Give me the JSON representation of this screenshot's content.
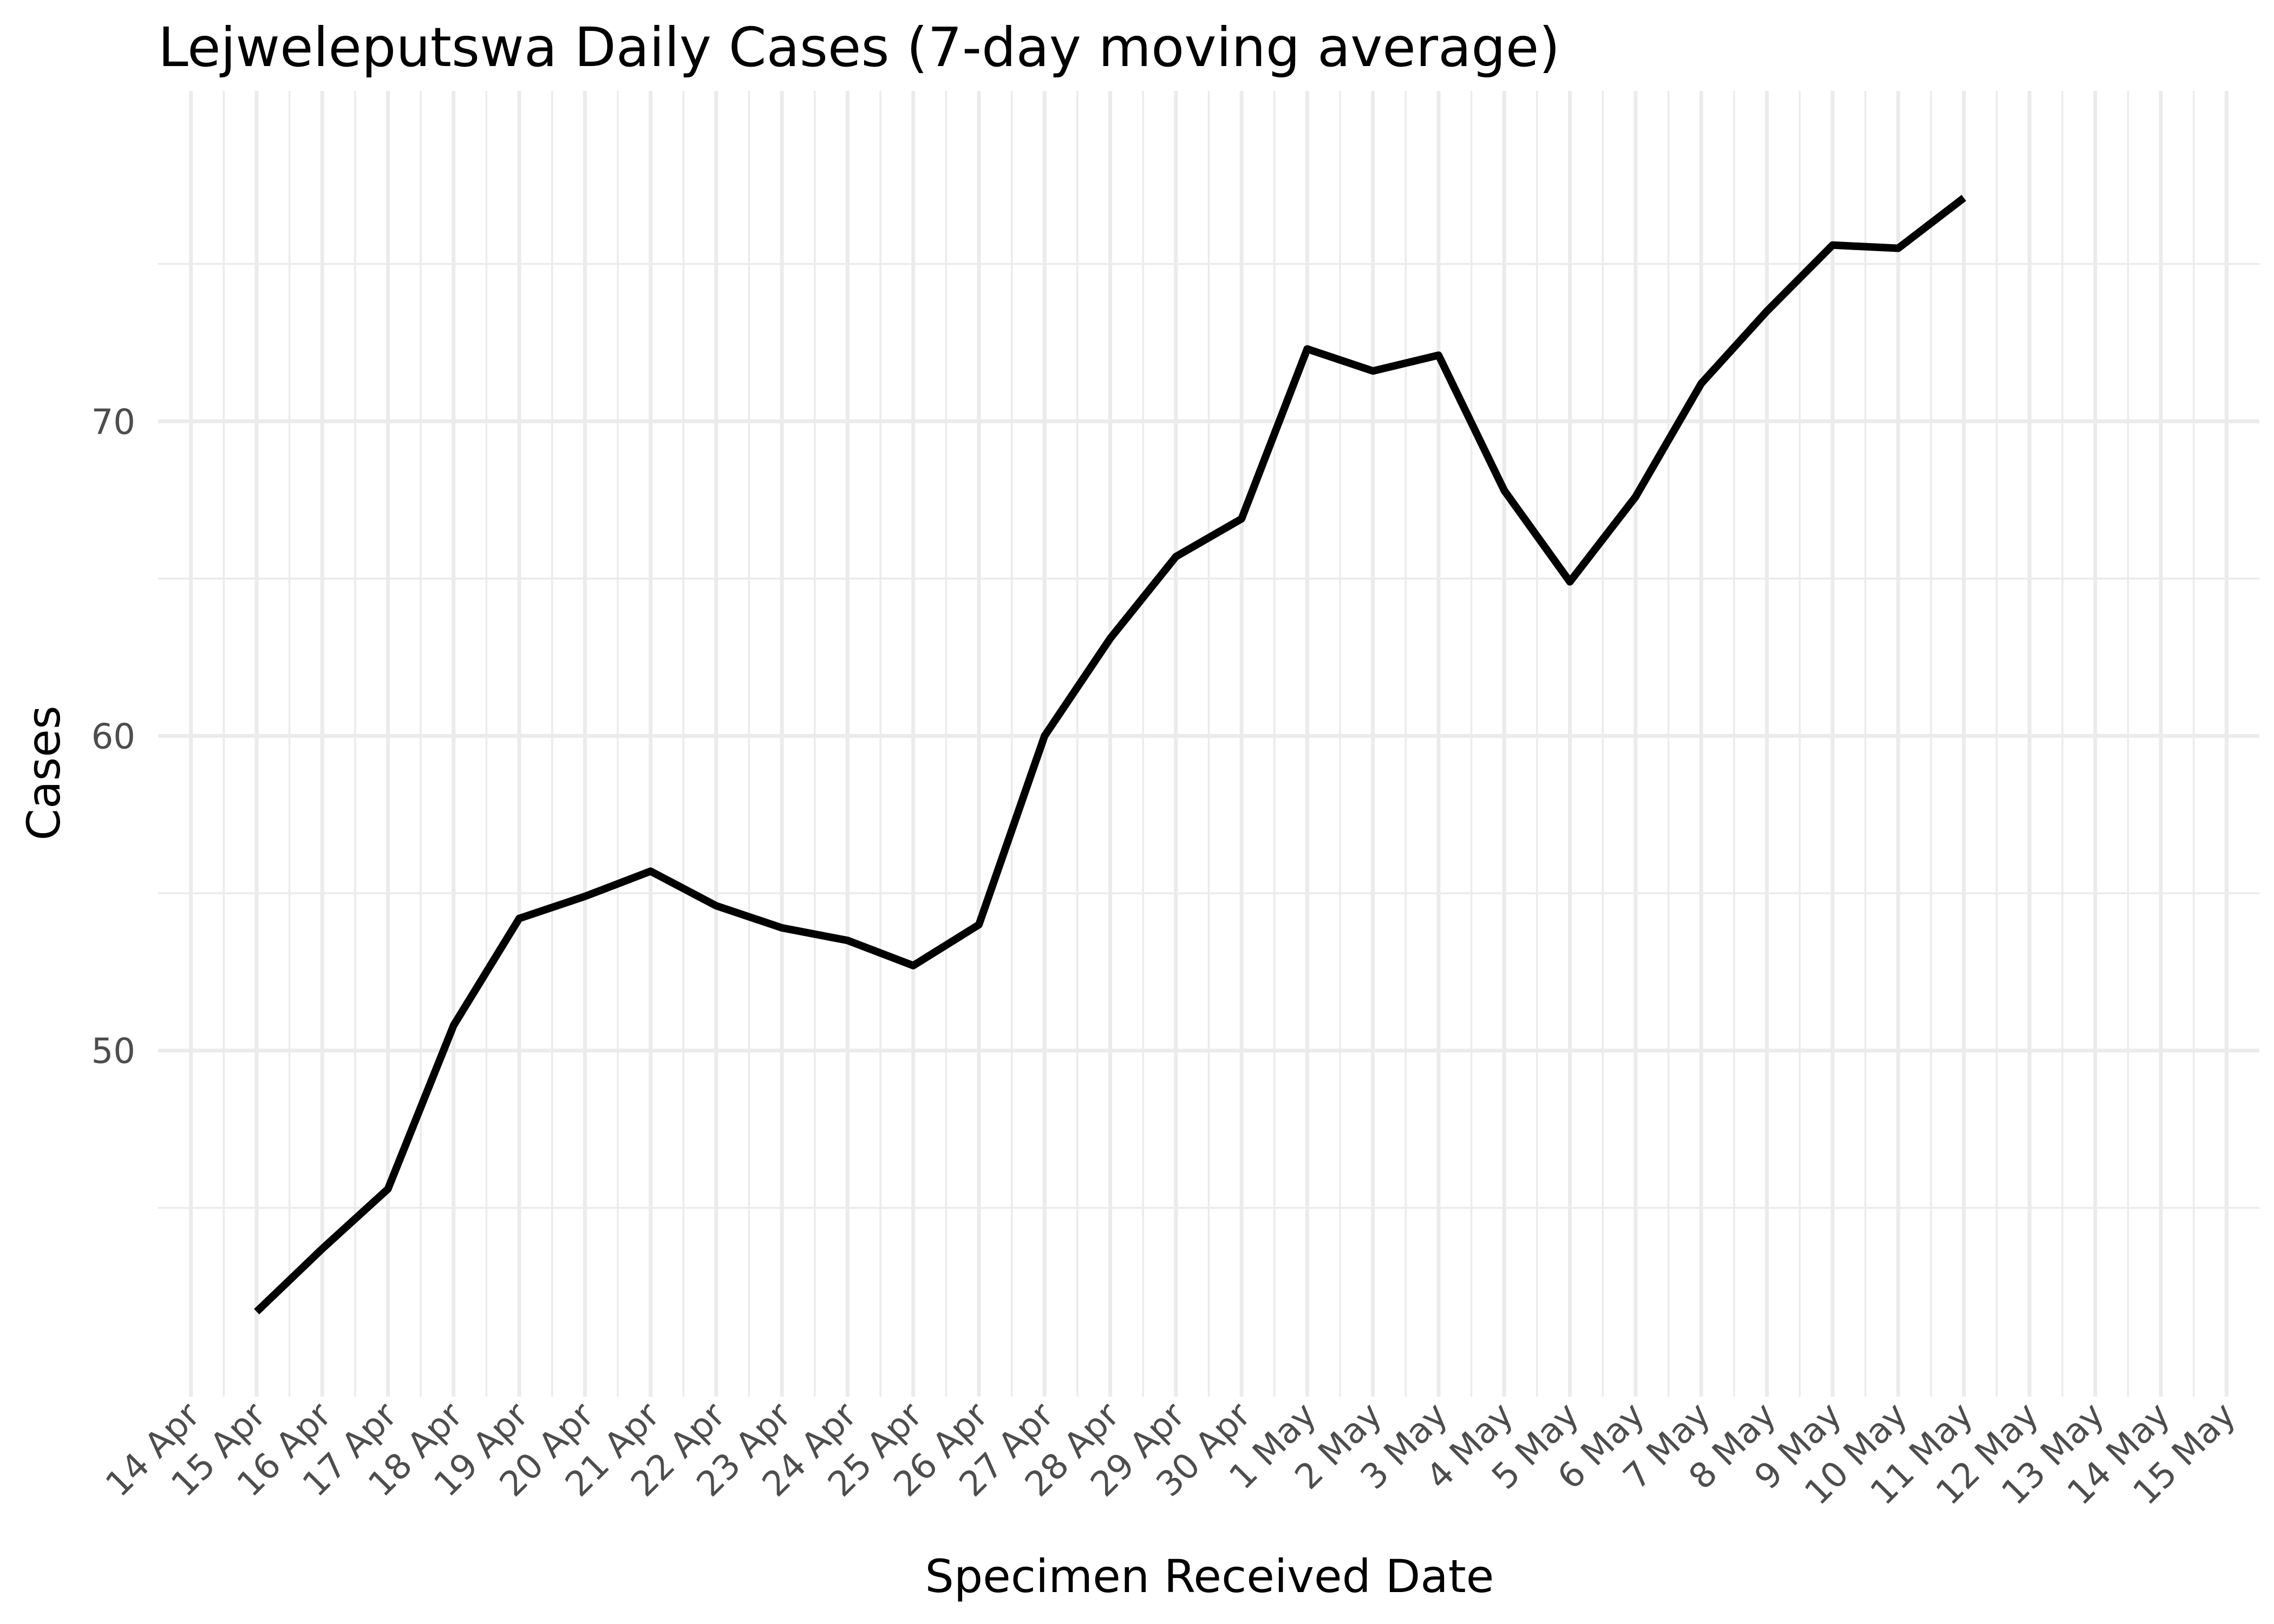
{
  "chart_data": {
    "type": "line",
    "title": "Lejweleputswa Daily Cases (7-day moving average)",
    "xlabel": "Specimen Received Date",
    "ylabel": "Cases",
    "x_tick_labels": [
      "14 Apr",
      "15 Apr",
      "16 Apr",
      "17 Apr",
      "18 Apr",
      "19 Apr",
      "20 Apr",
      "21 Apr",
      "22 Apr",
      "23 Apr",
      "24 Apr",
      "25 Apr",
      "26 Apr",
      "27 Apr",
      "28 Apr",
      "29 Apr",
      "30 Apr",
      "1 May",
      "2 May",
      "3 May",
      "4 May",
      "5 May",
      "6 May",
      "7 May",
      "8 May",
      "9 May",
      "10 May",
      "11 May",
      "12 May",
      "13 May",
      "14 May",
      "15 May"
    ],
    "y_ticks": [
      50,
      60,
      70
    ],
    "ylim": [
      39,
      80.5
    ],
    "grid": true,
    "line_color": "#000000",
    "x": [
      "15 Apr",
      "16 Apr",
      "17 Apr",
      "18 Apr",
      "19 Apr",
      "20 Apr",
      "21 Apr",
      "22 Apr",
      "23 Apr",
      "24 Apr",
      "25 Apr",
      "26 Apr",
      "27 Apr",
      "28 Apr",
      "29 Apr",
      "30 Apr",
      "1 May",
      "2 May",
      "3 May",
      "4 May",
      "5 May",
      "6 May",
      "7 May",
      "8 May",
      "9 May",
      "10 May",
      "11 May"
    ],
    "values": [
      41.7,
      43.7,
      45.6,
      50.8,
      54.2,
      54.9,
      55.7,
      54.6,
      53.9,
      53.5,
      52.7,
      54.0,
      60.0,
      63.1,
      65.7,
      66.9,
      72.3,
      71.6,
      72.1,
      67.8,
      64.9,
      67.6,
      71.2,
      73.5,
      75.6,
      75.5,
      77.1
    ]
  }
}
